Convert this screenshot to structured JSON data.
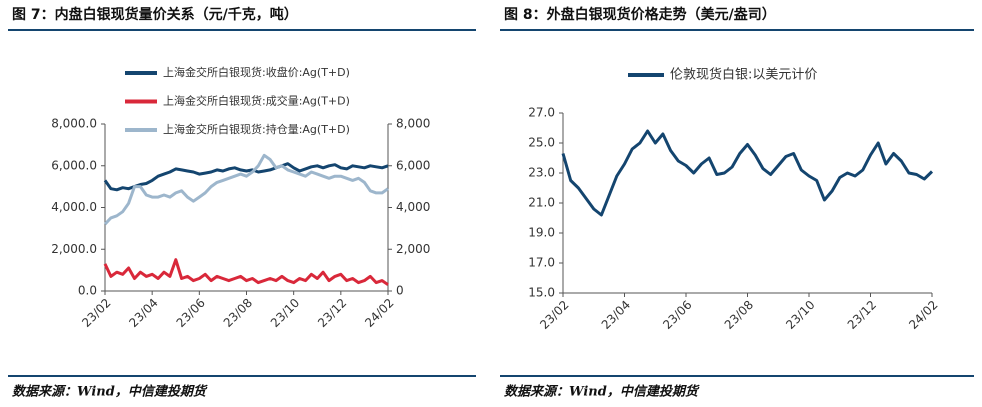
{
  "chart_data": [
    {
      "type": "line",
      "title": "图 7：内盘白银现货量价关系（元/千克，吨）",
      "source": "数据来源：Wind，中信建投期货",
      "categories": [
        "23/02",
        null,
        null,
        null,
        null,
        null,
        null,
        null,
        "23/04",
        null,
        null,
        null,
        null,
        null,
        null,
        null,
        "23/06",
        null,
        null,
        null,
        null,
        null,
        null,
        null,
        "23/08",
        null,
        null,
        null,
        null,
        null,
        null,
        null,
        "23/10",
        null,
        null,
        null,
        null,
        null,
        null,
        null,
        "23/12",
        null,
        null,
        null,
        null,
        null,
        null,
        null,
        "24/02"
      ],
      "ylim": [
        0,
        8000
      ],
      "yticks": [
        {
          "value": 0,
          "label": "0.0"
        },
        {
          "value": 2000,
          "label": "2,000.0"
        },
        {
          "value": 4000,
          "label": "4,000.0"
        },
        {
          "value": 6000,
          "label": "6,000.0"
        },
        {
          "value": 8000,
          "label": "8,000.0"
        }
      ],
      "y2lim": [
        0,
        8000
      ],
      "y2ticks": [
        0,
        {
          "value": 2000,
          "label": "2,000"
        },
        {
          "value": 4000,
          "label": "4,000"
        },
        {
          "value": 6000,
          "label": "6,000"
        },
        {
          "value": 8000,
          "label": "8,000"
        }
      ],
      "grid": false,
      "series": [
        {
          "name": "上海金交所白银现货:收盘价:Ag(T+D)",
          "color": "#14456f",
          "values": [
            5300,
            4900,
            4850,
            4950,
            4900,
            5000,
            5100,
            5150,
            5300,
            5500,
            5600,
            5700,
            5850,
            5800,
            5750,
            5700,
            5600,
            5650,
            5700,
            5800,
            5750,
            5850,
            5900,
            5800,
            5750,
            5800,
            5700,
            5750,
            5800,
            5900,
            6000,
            6100,
            5900,
            5750,
            5850,
            5950,
            6000,
            5900,
            6000,
            6050,
            5900,
            5850,
            6000,
            5950,
            5900,
            6000,
            5950,
            5900,
            6000
          ]
        },
        {
          "name": "上海金交所白银现货:成交量:Ag(T+D)",
          "color": "#d9283a",
          "values": [
            1300,
            700,
            900,
            800,
            1100,
            600,
            900,
            700,
            800,
            600,
            900,
            700,
            1500,
            600,
            700,
            500,
            600,
            800,
            500,
            700,
            600,
            500,
            600,
            700,
            500,
            600,
            400,
            500,
            600,
            500,
            700,
            500,
            400,
            600,
            500,
            800,
            600,
            900,
            500,
            700,
            800,
            500,
            600,
            400,
            500,
            700,
            400,
            500,
            300
          ]
        },
        {
          "name": "上海金交所白银现货:持仓量:Ag(T+D)",
          "color": "#9db6cc",
          "axis": "y2",
          "values": [
            3200,
            3500,
            3600,
            3800,
            4200,
            5000,
            5000,
            4600,
            4500,
            4500,
            4600,
            4500,
            4700,
            4800,
            4500,
            4300,
            4500,
            4700,
            5000,
            5200,
            5300,
            5400,
            5500,
            5600,
            5500,
            5700,
            6000,
            6500,
            6300,
            5900,
            6000,
            5800,
            5700,
            5600,
            5500,
            5700,
            5600,
            5500,
            5400,
            5500,
            5500,
            5400,
            5300,
            5400,
            5200,
            4800,
            4700,
            4700,
            4900
          ]
        }
      ]
    },
    {
      "type": "line",
      "title": "图 8：外盘白银现货价格走势（美元/盎司）",
      "source": "数据来源：Wind，中信建投期货",
      "categories": [
        "23/02",
        null,
        null,
        null,
        null,
        null,
        null,
        null,
        "23/04",
        null,
        null,
        null,
        null,
        null,
        null,
        null,
        "23/06",
        null,
        null,
        null,
        null,
        null,
        null,
        null,
        "23/08",
        null,
        null,
        null,
        null,
        null,
        null,
        null,
        "23/10",
        null,
        null,
        null,
        null,
        null,
        null,
        null,
        "23/12",
        null,
        null,
        null,
        null,
        null,
        null,
        null,
        "24/02"
      ],
      "ylim": [
        15,
        27
      ],
      "yticks": [
        {
          "value": 15,
          "label": "15.0"
        },
        {
          "value": 17,
          "label": "17.0"
        },
        {
          "value": 19,
          "label": "19.0"
        },
        {
          "value": 21,
          "label": "21.0"
        },
        {
          "value": 23,
          "label": "23.0"
        },
        {
          "value": 25,
          "label": "25.0"
        },
        {
          "value": 27,
          "label": "27.0"
        }
      ],
      "grid": false,
      "series": [
        {
          "name": "伦敦现货白银:以美元计价",
          "color": "#14456f",
          "values": [
            24.3,
            22.5,
            22.0,
            21.3,
            20.6,
            20.2,
            21.5,
            22.8,
            23.6,
            24.6,
            25.0,
            25.8,
            25.0,
            25.6,
            24.5,
            23.8,
            23.5,
            23.0,
            23.6,
            24.0,
            22.9,
            23.0,
            23.4,
            24.3,
            24.9,
            24.2,
            23.3,
            22.9,
            23.5,
            24.1,
            24.3,
            23.2,
            22.8,
            22.5,
            21.2,
            21.8,
            22.7,
            23.0,
            22.8,
            23.2,
            24.2,
            25.0,
            23.6,
            24.3,
            23.8,
            23.0,
            22.9,
            22.6,
            23.1
          ]
        }
      ]
    }
  ]
}
